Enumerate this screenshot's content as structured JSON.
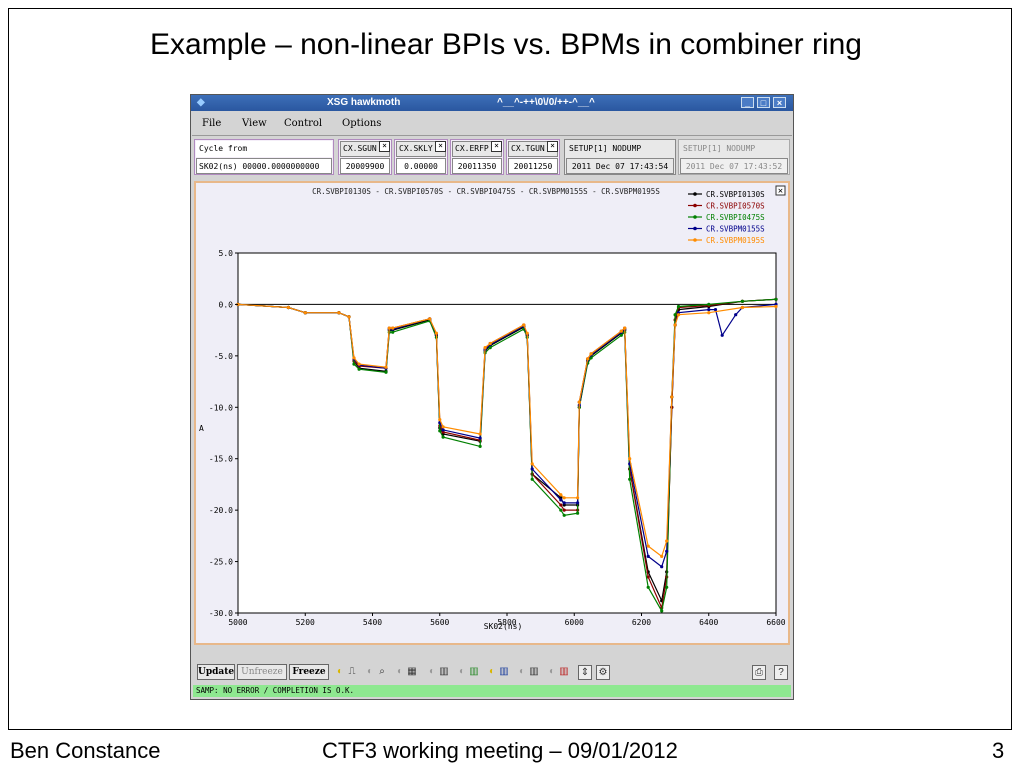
{
  "slide": {
    "title": "Example – non-linear BPIs vs. BPMs in combiner ring",
    "footer_left": "Ben Constance",
    "footer_center": "CTF3 working meeting – 09/01/2012",
    "page_number": "3"
  },
  "window": {
    "title": "XSG hawkmoth",
    "subtitle": "^__^-++\\0\\/0/++-^__^"
  },
  "menu": [
    "File",
    "View",
    "Control",
    "Options"
  ],
  "info_bar": {
    "cycle_label": "Cycle from",
    "cycle_value": "SK02(ns) 00000.0000000000",
    "fields": [
      {
        "name": "CX.SGUN",
        "value": "20009900"
      },
      {
        "name": "CX.SKLY",
        "value": "0.00000"
      },
      {
        "name": "CX.ERFP",
        "value": "20011350"
      },
      {
        "name": "CX.TGUN",
        "value": "20011250"
      }
    ],
    "setup_active": "SETUP[1] NODUMP",
    "setup_active_time": "2011 Dec 07 17:43:54",
    "setup_inactive": "SETUP[1] NODUMP",
    "setup_inactive_time": "2011 Dec 07 17:43:52"
  },
  "toolbar": {
    "update": "Update",
    "unfreeze": "Unfreeze",
    "freeze": "Freeze"
  },
  "status": "SAMP: NO ERROR  / COMPLETION IS O.K.",
  "colors": {
    "accent": "#2a57a0",
    "status_bg": "#8ee890",
    "plot_border": "#e8b88a"
  },
  "chart_data": {
    "type": "line",
    "title": "CR.SVBPI0130S  -  CR.SVBPI0570S  -  CR.SVBPI0475S  -  CR.SVBPM0155S  -  CR.SVBPM0195S",
    "xlabel": "SK02(ns)",
    "ylabel": "A",
    "xlim": [
      5000,
      6600
    ],
    "ylim": [
      -30,
      5
    ],
    "xticks": [
      "5000",
      "5200",
      "5400",
      "5600",
      "5800",
      "6000",
      "6200",
      "6400",
      "6600"
    ],
    "yticks": [
      "5.0",
      "0.0",
      "-5.0",
      "-10.0",
      "-15.0",
      "-20.0",
      "-25.0",
      "-30.0"
    ],
    "legend_position": "top-right",
    "series": [
      {
        "name": "CR.SVBPI0130S",
        "color": "#000000",
        "x": [
          5000,
          5150,
          5200,
          5300,
          5330,
          5345,
          5360,
          5440,
          5450,
          5460,
          5570,
          5590,
          5600,
          5610,
          5720,
          5735,
          5750,
          5850,
          5860,
          5875,
          5960,
          5970,
          6010,
          6015,
          6040,
          6050,
          6140,
          6150,
          6165,
          6220,
          6260,
          6275,
          6290,
          6300,
          6310,
          6400,
          6500,
          6600
        ],
        "y": [
          0,
          -0.3,
          -0.8,
          -0.8,
          -1.2,
          -5.5,
          -6.2,
          -6.5,
          -2.5,
          -2.5,
          -1.5,
          -3,
          -12,
          -12.6,
          -13.3,
          -4.5,
          -4,
          -2.2,
          -3,
          -16.5,
          -18.8,
          -19.5,
          -19.5,
          -10,
          -5.5,
          -5,
          -2.8,
          -2.5,
          -16,
          -26,
          -28.8,
          -26,
          -10,
          -2,
          -0.5,
          -0.2,
          0.3,
          0.5
        ]
      },
      {
        "name": "CR.SVBPI0570S",
        "color": "#8b0000",
        "x": [
          5000,
          5150,
          5200,
          5300,
          5330,
          5345,
          5360,
          5440,
          5450,
          5460,
          5570,
          5590,
          5600,
          5610,
          5720,
          5735,
          5750,
          5850,
          5860,
          5875,
          5960,
          5970,
          6010,
          6015,
          6040,
          6050,
          6140,
          6150,
          6165,
          6220,
          6260,
          6275,
          6290,
          6300,
          6310,
          6400,
          6500,
          6600
        ],
        "y": [
          0,
          -0.3,
          -0.8,
          -0.8,
          -1.2,
          -5.5,
          -6,
          -6.2,
          -2.3,
          -2.3,
          -1.4,
          -3,
          -11.8,
          -12.4,
          -13.2,
          -4.3,
          -3.8,
          -2,
          -3,
          -16.5,
          -19.5,
          -20,
          -20,
          -9.5,
          -5.3,
          -4.8,
          -2.6,
          -2.3,
          -16,
          -26.5,
          -29.5,
          -26.5,
          -10,
          -1.5,
          -0.3,
          -0.1,
          0.3,
          0.5
        ]
      },
      {
        "name": "CR.SVBPI0475S",
        "color": "#008000",
        "x": [
          5000,
          5150,
          5200,
          5300,
          5330,
          5345,
          5360,
          5440,
          5450,
          5460,
          5570,
          5590,
          5600,
          5610,
          5720,
          5735,
          5750,
          5850,
          5860,
          5875,
          5960,
          5970,
          6010,
          6015,
          6040,
          6050,
          6140,
          6150,
          6165,
          6220,
          6260,
          6275,
          6290,
          6300,
          6310,
          6400,
          6500,
          6600
        ],
        "y": [
          0,
          -0.3,
          -0.8,
          -0.8,
          -1.2,
          -5.8,
          -6.3,
          -6.6,
          -2.7,
          -2.7,
          -1.6,
          -3.2,
          -12.3,
          -12.9,
          -13.8,
          -4.7,
          -4.2,
          -2.4,
          -3.2,
          -17,
          -20,
          -20.5,
          -20.3,
          -10,
          -5.7,
          -5.2,
          -3,
          -2.7,
          -17,
          -27.5,
          -29.8,
          -27.5,
          -9,
          -1,
          -0.2,
          0,
          0.3,
          0.5
        ]
      },
      {
        "name": "CR.SVBPM0155S",
        "color": "#00008b",
        "x": [
          5000,
          5150,
          5200,
          5300,
          5330,
          5345,
          5360,
          5440,
          5450,
          5460,
          5570,
          5590,
          5600,
          5610,
          5720,
          5735,
          5750,
          5850,
          5860,
          5875,
          5960,
          5970,
          6010,
          6015,
          6040,
          6050,
          6140,
          6150,
          6165,
          6220,
          6260,
          6275,
          6290,
          6300,
          6310,
          6400,
          6420,
          6440,
          6480,
          6500,
          6600
        ],
        "y": [
          0,
          -0.3,
          -0.8,
          -0.8,
          -1.2,
          -5.3,
          -5.9,
          -6.2,
          -2.4,
          -2.4,
          -1.4,
          -2.9,
          -11.5,
          -12.2,
          -13,
          -4.4,
          -3.9,
          -2.1,
          -2.9,
          -16,
          -19,
          -19.3,
          -19.3,
          -9.8,
          -5.4,
          -4.9,
          -2.7,
          -2.4,
          -15.5,
          -24.5,
          -25.5,
          -24,
          -9,
          -2,
          -0.8,
          -0.5,
          -0.5,
          -3,
          -1,
          -0.3,
          0
        ]
      },
      {
        "name": "CR.SVBPM0195S",
        "color": "#ff8c00",
        "x": [
          5000,
          5150,
          5200,
          5300,
          5330,
          5345,
          5360,
          5440,
          5450,
          5460,
          5570,
          5590,
          5600,
          5610,
          5720,
          5735,
          5750,
          5850,
          5860,
          5875,
          5960,
          5970,
          6010,
          6015,
          6040,
          6050,
          6140,
          6150,
          6165,
          6220,
          6260,
          6275,
          6290,
          6300,
          6310,
          6400,
          6500,
          6600
        ],
        "y": [
          0,
          -0.3,
          -0.8,
          -0.8,
          -1.2,
          -5.2,
          -5.8,
          -6.1,
          -2.3,
          -2.3,
          -1.4,
          -2.8,
          -11.2,
          -11.9,
          -12.6,
          -4.2,
          -3.8,
          -2,
          -2.8,
          -15.5,
          -18.5,
          -18.8,
          -18.8,
          -9.5,
          -5.3,
          -4.8,
          -2.6,
          -2.3,
          -15,
          -23.5,
          -24.5,
          -23,
          -9,
          -2,
          -1,
          -0.8,
          -0.3,
          -0.2
        ]
      }
    ]
  }
}
